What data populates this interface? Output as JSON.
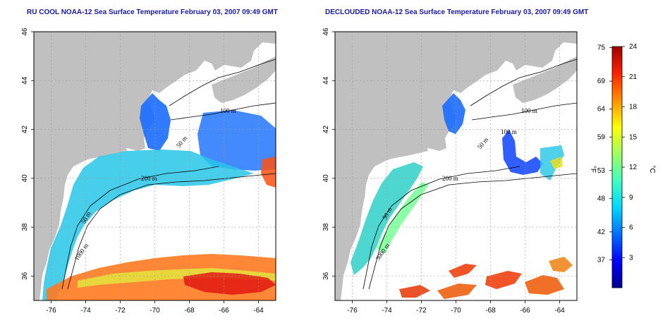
{
  "panels": [
    {
      "title": "RU COOL NOAA-12 Sea Surface Temperature February 03, 2007 09:49 GMT",
      "contour_labels": [
        "100 m",
        "50 m",
        "200 m",
        "50 m",
        "1000 m"
      ]
    },
    {
      "title": "DECLOUDED NOAA-12 Sea Surface Temperature February 03, 2007 09:49 GMT",
      "contour_labels": [
        "100 m",
        "100 m",
        "50 m",
        "200 m",
        "50 m",
        "3000 m"
      ]
    }
  ],
  "axes": {
    "x_ticks": [
      "-76",
      "-74",
      "-72",
      "-70",
      "-68",
      "-66",
      "-64"
    ],
    "y_ticks": [
      "46",
      "44",
      "42",
      "40",
      "38",
      "36"
    ],
    "xlim": [
      -77,
      -63
    ],
    "ylim": [
      35,
      46
    ]
  },
  "colorbar": {
    "fahrenheit_ticks": [
      "75",
      "69",
      "64",
      "59",
      "53",
      "48",
      "42",
      "37"
    ],
    "celsius_ticks": [
      "24",
      "21",
      "18",
      "15",
      "12",
      "9",
      "6",
      "3"
    ],
    "fahrenheit_label": "°F",
    "celsius_label": "°C",
    "range_c": [
      0,
      24
    ],
    "colors": [
      "#00008f",
      "#0000ff",
      "#0070ff",
      "#00d8ff",
      "#40ffbf",
      "#a0ff60",
      "#ffff00",
      "#ff9000",
      "#ff2000",
      "#a00000"
    ]
  },
  "colors": {
    "land": "#c0c0c0",
    "water_no_data": "#ffffff",
    "title": "#1a1aa6"
  }
}
